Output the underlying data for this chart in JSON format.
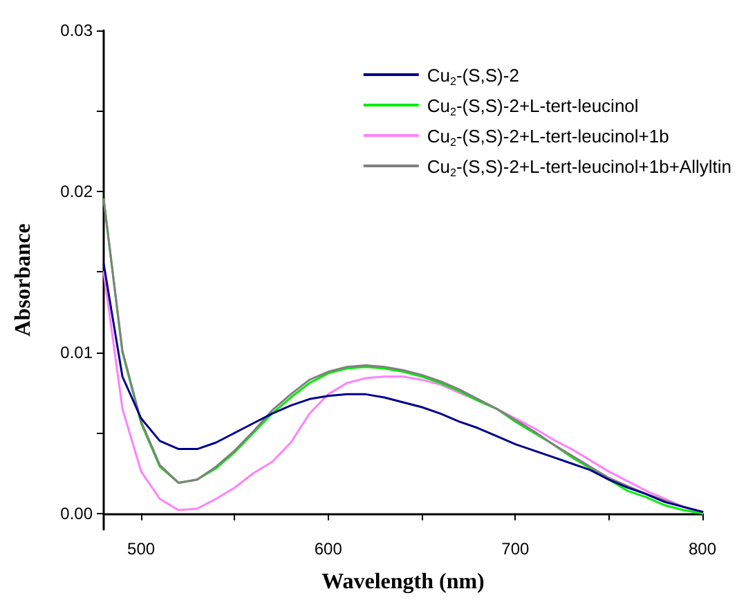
{
  "chart_data": {
    "type": "line",
    "xlabel": "Wavelength (nm)",
    "ylabel": "Absorbance",
    "x": [
      480,
      490,
      500,
      510,
      520,
      530,
      540,
      550,
      560,
      570,
      580,
      590,
      600,
      610,
      620,
      630,
      640,
      650,
      660,
      670,
      680,
      690,
      700,
      710,
      720,
      730,
      740,
      750,
      760,
      770,
      780,
      790,
      800
    ],
    "series": [
      {
        "name": "Cu$_{2}$-(S,S)-2",
        "color": "#00008b",
        "values": [
          0.0155,
          0.0085,
          0.0059,
          0.0045,
          0.004,
          0.004,
          0.0044,
          0.005,
          0.0056,
          0.0062,
          0.0067,
          0.0071,
          0.0073,
          0.0074,
          0.0074,
          0.0072,
          0.0069,
          0.0066,
          0.0062,
          0.0057,
          0.0053,
          0.0048,
          0.0043,
          0.0039,
          0.0035,
          0.0031,
          0.0027,
          0.0021,
          0.0016,
          0.0012,
          0.0007,
          0.0004,
          0.0001
        ]
      },
      {
        "name": "Cu$_{2}$-(S,S)-2+L-tert-leucinol",
        "color": "#00ee00",
        "values": [
          0.0195,
          0.01,
          0.0056,
          0.0029,
          0.0019,
          0.0021,
          0.0028,
          0.0038,
          0.005,
          0.0062,
          0.0072,
          0.0081,
          0.0087,
          0.009,
          0.0091,
          0.009,
          0.0088,
          0.0085,
          0.0081,
          0.0076,
          0.007,
          0.0065,
          0.0057,
          0.005,
          0.0043,
          0.0035,
          0.0028,
          0.0021,
          0.0014,
          0.001,
          0.0005,
          0.0002,
          0.0
        ]
      },
      {
        "name": "Cu$_{2}$-(S,S)-2+L-tert-leucinol+1b",
        "color": "#ff80ff",
        "values": [
          0.015,
          0.0065,
          0.0026,
          0.0009,
          0.0002,
          0.0003,
          0.0009,
          0.0016,
          0.0025,
          0.0032,
          0.0044,
          0.0062,
          0.0074,
          0.0081,
          0.0084,
          0.0085,
          0.0085,
          0.0083,
          0.008,
          0.0075,
          0.007,
          0.0065,
          0.0059,
          0.0053,
          0.0046,
          0.004,
          0.0033,
          0.0026,
          0.002,
          0.0014,
          0.0009,
          0.0004,
          0.0
        ]
      },
      {
        "name": "Cu$_{2}$-(S,S)-2+L-tert-leucinol+1b+Allyltin",
        "color": "#808080",
        "values": [
          0.0195,
          0.0101,
          0.0057,
          0.003,
          0.0019,
          0.0021,
          0.0029,
          0.0039,
          0.0051,
          0.0064,
          0.0074,
          0.0083,
          0.0088,
          0.0091,
          0.0092,
          0.0091,
          0.0089,
          0.0086,
          0.0082,
          0.0077,
          0.0071,
          0.0065,
          0.0058,
          0.0051,
          0.0043,
          0.0036,
          0.0029,
          0.0022,
          0.0017,
          0.0012,
          0.0008,
          0.0004,
          0.0001
        ]
      }
    ],
    "xlim": [
      480,
      800
    ],
    "xticks": [
      500,
      {
        "value": 550,
        "label": null
      },
      600,
      {
        "value": 650,
        "label": null
      },
      700,
      {
        "value": 750,
        "label": null
      },
      800
    ],
    "ylim": [
      -0.001,
      0.03
    ],
    "yticks": [
      {
        "value": 0,
        "label": "0.00"
      },
      {
        "value": 0.005,
        "label": null
      },
      {
        "value": 0.01,
        "label": "0.01"
      },
      {
        "value": 0.015,
        "label": null
      },
      {
        "value": 0.02,
        "label": "0.02"
      },
      {
        "value": 0.025,
        "label": null
      },
      {
        "value": 0.03,
        "label": "0.03"
      }
    ],
    "grid": false,
    "legend": "top right",
    "marker": "none",
    "line_style": "solid"
  }
}
